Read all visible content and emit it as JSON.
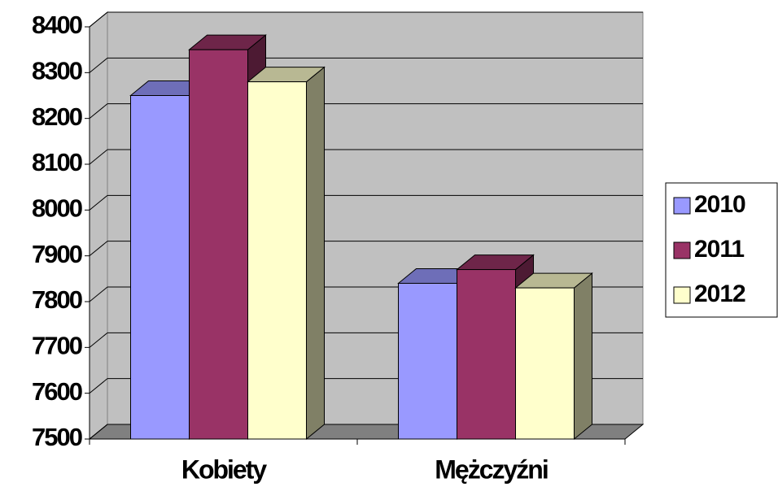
{
  "chart_data": {
    "type": "bar3d",
    "categories": [
      "Kobiety",
      "Mężczyźni"
    ],
    "series": [
      {
        "name": "2010",
        "color": "#9999ff",
        "values": [
          8250,
          7840
        ]
      },
      {
        "name": "2011",
        "color": "#993366",
        "values": [
          8350,
          7870
        ]
      },
      {
        "name": "2012",
        "color": "#ffffcc",
        "values": [
          8280,
          7830
        ]
      }
    ],
    "ylim": [
      7500,
      8400
    ],
    "yticks": [
      7500,
      7600,
      7700,
      7800,
      7900,
      8000,
      8100,
      8200,
      8300,
      8400
    ],
    "grid": true,
    "legend": "right"
  }
}
